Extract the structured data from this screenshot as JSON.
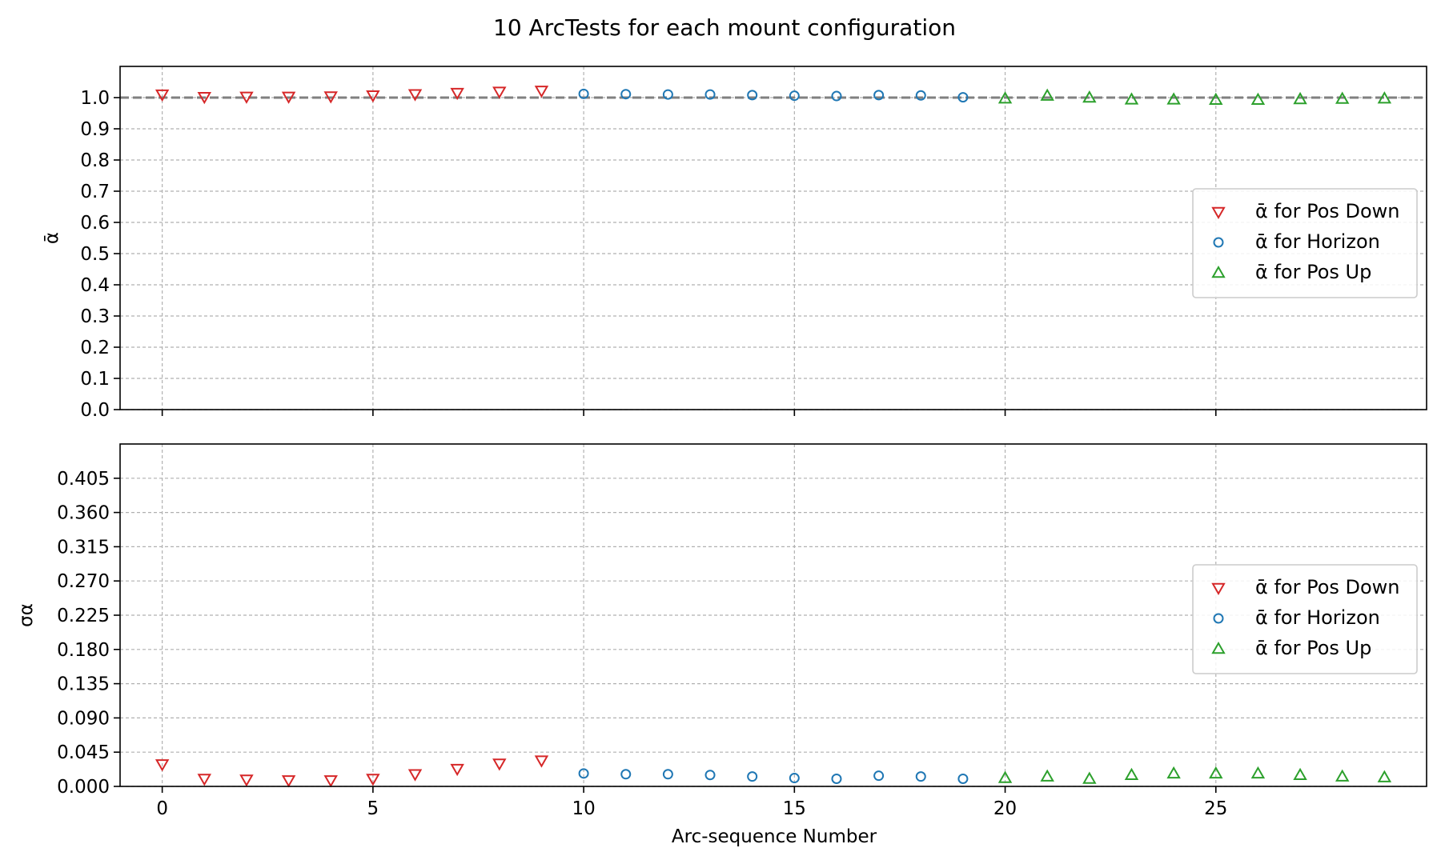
{
  "chart_data": {
    "type": "scatter",
    "title": "10 ArcTests for each mount configuration",
    "xlabel": "Arc-sequence Number",
    "xticks": [
      0,
      5,
      10,
      15,
      20,
      25
    ],
    "xlim": [
      -1,
      30
    ],
    "legend_position": "center-right",
    "grid": true,
    "panels": [
      {
        "id": "mean",
        "ylabel": "ᾱ",
        "ylim": [
          0,
          1.1
        ],
        "yticks": [
          "0.0",
          "0.1",
          "0.2",
          "0.3",
          "0.4",
          "0.5",
          "0.6",
          "0.7",
          "0.8",
          "0.9",
          "1.0"
        ],
        "reference_line": 1.0,
        "series": [
          {
            "name": "ᾱ for Pos Down",
            "marker": "triangle-down",
            "color": "#d62728",
            "x": [
              0,
              1,
              2,
              3,
              4,
              5,
              6,
              7,
              8,
              9
            ],
            "y": [
              1.01,
              1.002,
              1.003,
              1.003,
              1.004,
              1.007,
              1.011,
              1.015,
              1.019,
              1.022
            ]
          },
          {
            "name": "ᾱ for Horizon",
            "marker": "circle",
            "color": "#1f77b4",
            "x": [
              10,
              11,
              12,
              13,
              14,
              15,
              16,
              17,
              18,
              19
            ],
            "y": [
              1.012,
              1.011,
              1.01,
              1.01,
              1.008,
              1.006,
              1.005,
              1.008,
              1.007,
              1.001
            ]
          },
          {
            "name": "ᾱ for Pos Up",
            "marker": "triangle-up",
            "color": "#2ca02c",
            "x": [
              20,
              21,
              22,
              23,
              24,
              25,
              26,
              27,
              28,
              29
            ],
            "y": [
              0.997,
              1.006,
              1.0,
              0.994,
              0.994,
              0.993,
              0.993,
              0.995,
              0.996,
              0.997
            ]
          }
        ]
      },
      {
        "id": "sigma",
        "ylabel": "σα",
        "ylim": [
          0,
          0.45
        ],
        "yticks": [
          "0.000",
          "0.045",
          "0.090",
          "0.135",
          "0.180",
          "0.225",
          "0.270",
          "0.315",
          "0.360",
          "0.405"
        ],
        "series": [
          {
            "name": "ᾱ for Pos Down",
            "marker": "triangle-down",
            "color": "#d62728",
            "x": [
              0,
              1,
              2,
              3,
              4,
              5,
              6,
              7,
              8,
              9
            ],
            "y": [
              0.029,
              0.01,
              0.009,
              0.008,
              0.008,
              0.01,
              0.016,
              0.023,
              0.03,
              0.034
            ]
          },
          {
            "name": "ᾱ for Horizon",
            "marker": "circle",
            "color": "#1f77b4",
            "x": [
              10,
              11,
              12,
              13,
              14,
              15,
              16,
              17,
              18,
              19
            ],
            "y": [
              0.017,
              0.016,
              0.016,
              0.015,
              0.013,
              0.011,
              0.01,
              0.014,
              0.013,
              0.01
            ]
          },
          {
            "name": "ᾱ for Pos Up",
            "marker": "triangle-up",
            "color": "#2ca02c",
            "x": [
              20,
              21,
              22,
              23,
              24,
              25,
              26,
              27,
              28,
              29
            ],
            "y": [
              0.011,
              0.013,
              0.01,
              0.015,
              0.017,
              0.017,
              0.017,
              0.015,
              0.013,
              0.012
            ]
          }
        ]
      }
    ]
  }
}
